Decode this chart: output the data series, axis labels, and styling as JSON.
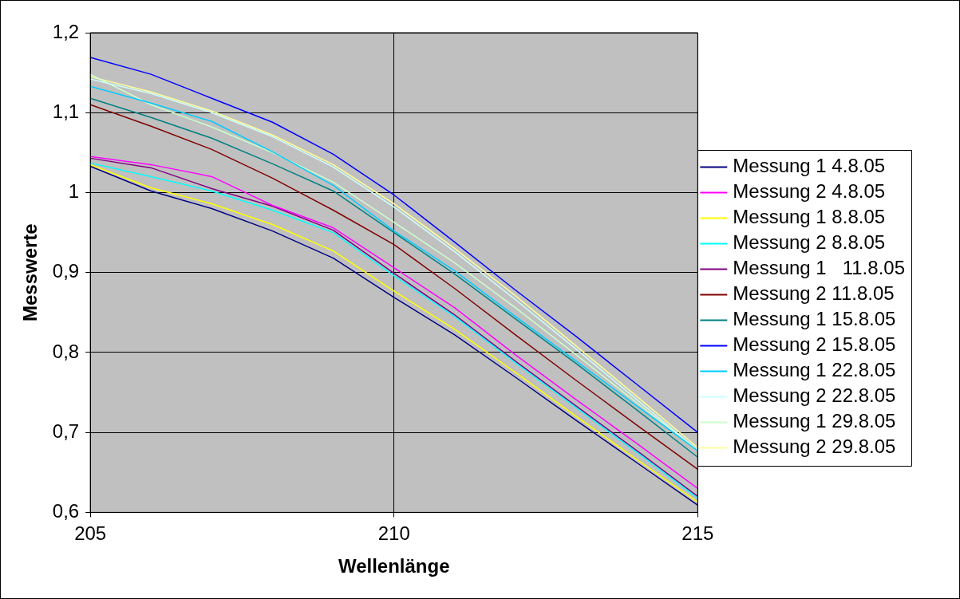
{
  "chart_data": {
    "type": "line",
    "xlabel": "Wellenlänge",
    "ylabel": "Messwerte",
    "x": [
      205,
      206,
      207,
      208,
      209,
      210,
      211,
      212,
      213,
      214,
      215
    ],
    "xlim": [
      205,
      215
    ],
    "xticks": [
      205,
      210,
      215
    ],
    "ylim": [
      0.6,
      1.2
    ],
    "yticks": [
      {
        "value": 0.6,
        "label": "0,6"
      },
      {
        "value": 0.7,
        "label": "0,7"
      },
      {
        "value": 0.8,
        "label": "0,8"
      },
      {
        "value": 0.9,
        "label": "0,9"
      },
      1,
      {
        "value": 1.1,
        "label": "1,1"
      },
      {
        "value": 1.2,
        "label": "1,2"
      }
    ],
    "grid": true,
    "legend": "right",
    "marker": "none",
    "line_style": "solid",
    "series": [
      {
        "name": "Messung 1 4.8.05",
        "color": "#000080",
        "values": [
          1.033,
          1.002,
          0.98,
          0.952,
          0.918,
          0.869,
          0.822,
          0.769,
          0.715,
          0.662,
          0.609
        ]
      },
      {
        "name": "Messung 2 4.8.05",
        "color": "#ff00ff",
        "values": [
          1.045,
          1.035,
          1.02,
          0.984,
          0.956,
          0.906,
          0.856,
          0.797,
          0.741,
          0.686,
          0.63
        ]
      },
      {
        "name": "Messung 1 8.8.05",
        "color": "#ffff00",
        "values": [
          1.035,
          1.006,
          0.986,
          0.96,
          0.927,
          0.877,
          0.829,
          0.775,
          0.72,
          0.666,
          0.613
        ]
      },
      {
        "name": "Messung 2 8.8.05",
        "color": "#00ffff",
        "values": [
          1.037,
          1.02,
          1.002,
          0.978,
          0.95,
          0.896,
          0.845,
          0.787,
          0.731,
          0.675,
          0.618
        ]
      },
      {
        "name": "Messung 1   11.8.05",
        "color": "#800080",
        "values": [
          1.043,
          1.031,
          1.005,
          0.983,
          0.953,
          0.899,
          0.847,
          0.789,
          0.733,
          0.677,
          0.62
        ]
      },
      {
        "name": "Messung 2 11.8.05",
        "color": "#800000",
        "values": [
          1.11,
          1.083,
          1.054,
          1.018,
          0.978,
          0.935,
          0.88,
          0.822,
          0.765,
          0.709,
          0.654
        ]
      },
      {
        "name": "Messung 1 15.8.05",
        "color": "#008080",
        "values": [
          1.118,
          1.094,
          1.068,
          1.036,
          1.002,
          0.95,
          0.898,
          0.842,
          0.786,
          0.728,
          0.669
        ]
      },
      {
        "name": "Messung 2 15.8.05",
        "color": "#0000ff",
        "values": [
          1.169,
          1.148,
          1.118,
          1.088,
          1.048,
          0.997,
          0.938,
          0.878,
          0.82,
          0.76,
          0.7
        ]
      },
      {
        "name": "Messung 1 22.8.05",
        "color": "#00ccff",
        "values": [
          1.133,
          1.112,
          1.089,
          1.051,
          1.009,
          0.952,
          0.902,
          0.845,
          0.789,
          0.733,
          0.677
        ]
      },
      {
        "name": "Messung 2 22.8.05",
        "color": "#ccffff",
        "values": [
          1.142,
          1.124,
          1.1,
          1.07,
          1.032,
          0.982,
          0.926,
          0.866,
          0.804,
          0.741,
          0.678
        ]
      },
      {
        "name": "Messung 1 29.8.05",
        "color": "#ccffcc",
        "values": [
          1.148,
          1.11,
          1.082,
          1.05,
          1.013,
          0.963,
          0.912,
          0.856,
          0.797,
          0.737,
          0.678
        ]
      },
      {
        "name": "Messung 2 29.8.05",
        "color": "#ffff99",
        "values": [
          1.145,
          1.126,
          1.102,
          1.072,
          1.035,
          0.986,
          0.93,
          0.871,
          0.808,
          0.745,
          0.681
        ]
      }
    ]
  }
}
